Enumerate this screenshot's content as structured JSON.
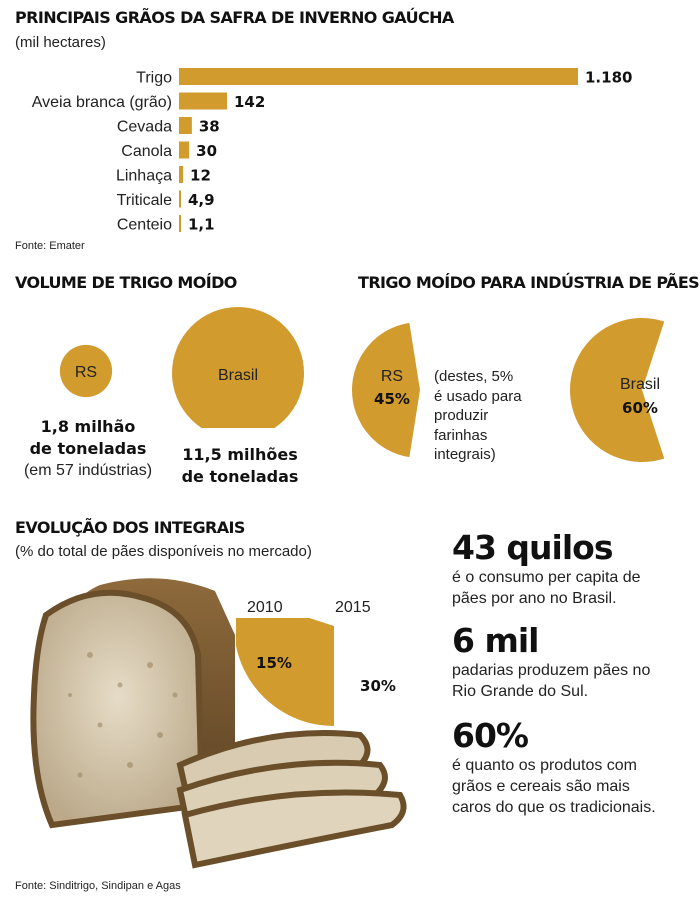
{
  "colors": {
    "gold": "#d19b2e",
    "text": "#111111"
  },
  "chart_data": [
    {
      "type": "bar",
      "title": "PRINCIPAIS GRÃOS DA SAFRA DE INVERNO GAÚCHA",
      "subtitle": "(mil hectares)",
      "categories": [
        "Trigo",
        "Aveia branca (grão)",
        "Cevada",
        "Canola",
        "Linhaça",
        "Triticale",
        "Centeio"
      ],
      "values": [
        1180,
        142,
        38,
        30,
        12,
        4.9,
        1.1
      ],
      "value_labels": [
        "1.180",
        "142",
        "38",
        "30",
        "12",
        "4,9",
        "1,1"
      ],
      "source": "Fonte: Emater"
    },
    {
      "type": "bubble",
      "title": "VOLUME DE TRIGO MOÍDO",
      "items": [
        {
          "name": "RS",
          "value": 1.8,
          "label_lines": [
            "1,8 milhão",
            "de toneladas"
          ],
          "note": "(em 57 indústrias)"
        },
        {
          "name": "Brasil",
          "value": 11.5,
          "label_lines": [
            "11,5 milhões",
            "de toneladas"
          ]
        }
      ]
    },
    {
      "type": "pie",
      "title": "TRIGO MOÍDO PARA INDÚSTRIA DE PÃES",
      "items": [
        {
          "name": "RS",
          "value": 45,
          "label": "45%",
          "note_lines": [
            "(destes, 5%",
            "é usado para",
            "produzir",
            "farinhas",
            "integrais)"
          ]
        },
        {
          "name": "Brasil",
          "value": 60,
          "label": "60%"
        }
      ]
    },
    {
      "type": "pie",
      "title": "EVOLUÇÃO DOS INTEGRAIS",
      "subtitle": "(% do total de pães disponíveis no mercado)",
      "items": [
        {
          "name": "2010",
          "value": 15,
          "label": "15%"
        },
        {
          "name": "2015",
          "value": 30,
          "label": "30%"
        }
      ]
    }
  ],
  "facts": [
    {
      "big": "43 quilos",
      "lines": [
        "é o consumo per capita de",
        "pães por ano no Brasil."
      ]
    },
    {
      "big": "6 mil",
      "lines": [
        "padarias produzem pães no",
        "Rio Grande do Sul."
      ]
    },
    {
      "big": "60%",
      "lines": [
        "é quanto os produtos com",
        "grãos e cereais são mais",
        "caros do que os tradicionais."
      ]
    }
  ],
  "footer_source": "Fonte: Sinditrigo, Sindipan e Agas",
  "image_labels": {
    "bread": "bread-photo"
  }
}
